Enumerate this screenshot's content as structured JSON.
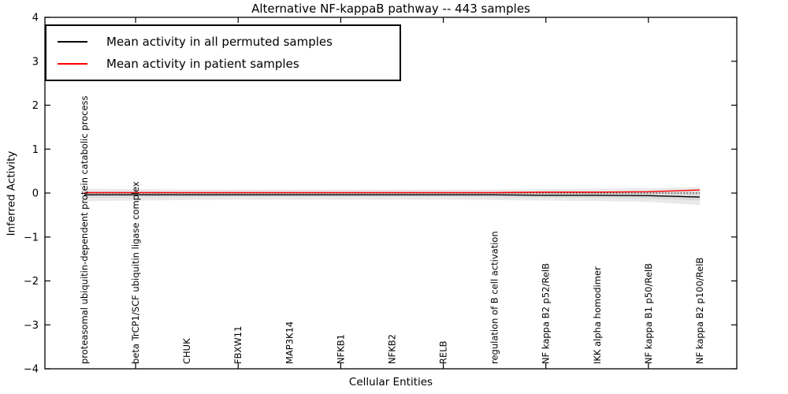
{
  "chart_data": {
    "type": "line",
    "title": "Alternative NF-kappaB pathway -- 443 samples",
    "xlabel": "Cellular Entities",
    "ylabel": "Inferred Activity",
    "ylim": [
      -4,
      4
    ],
    "grid": false,
    "legend_position": "upper left",
    "yticks": [
      {
        "value": 4,
        "label": "4"
      },
      {
        "value": 3,
        "label": "3"
      },
      {
        "value": 2,
        "label": "2"
      },
      {
        "value": 1,
        "label": "1"
      },
      {
        "value": 0,
        "label": "0"
      },
      {
        "value": -1,
        "label": "−1"
      },
      {
        "value": -2,
        "label": "−2"
      },
      {
        "value": -3,
        "label": "−3"
      },
      {
        "value": -4,
        "label": "−4"
      }
    ],
    "xtick_minor_indices": [
      1,
      3,
      5,
      7,
      9,
      11
    ],
    "categories": [
      "proteasomal ubiquitin-dependent protein catabolic process",
      "beta TrCP1/SCF ubiquitin ligase complex",
      "CHUK",
      "FBXW11",
      "MAP3K14",
      "NFKB1",
      "NFKB2",
      "RELB",
      "regulation of B cell activation",
      "NF kappa B2 p52/RelB",
      "IKK alpha homodimer",
      "NF kappa B1 p50/RelB",
      "NF kappa B2 p100/RelB"
    ],
    "series": [
      {
        "name": "Mean activity in all permuted samples",
        "color": "#000000",
        "style": "solid",
        "values": [
          -0.04,
          -0.04,
          -0.04,
          -0.04,
          -0.04,
          -0.04,
          -0.04,
          -0.04,
          -0.04,
          -0.05,
          -0.05,
          -0.06,
          -0.09
        ]
      },
      {
        "name": "Mean activity in patient samples",
        "color": "#ff0000",
        "style": "solid",
        "values": [
          0.01,
          0.01,
          0.01,
          0.01,
          0.01,
          0.01,
          0.01,
          0.01,
          0.01,
          0.02,
          0.02,
          0.03,
          0.07
        ]
      }
    ],
    "zero_line": {
      "color": "#000000",
      "style": "dotted",
      "value": 0
    },
    "bands": [
      {
        "name": "permuted-spread-outer",
        "color": "#e9e9e9",
        "upper": [
          0.1,
          0.09,
          0.08,
          0.08,
          0.08,
          0.08,
          0.08,
          0.08,
          0.08,
          0.09,
          0.1,
          0.11,
          0.14
        ],
        "lower": [
          -0.18,
          -0.17,
          -0.16,
          -0.15,
          -0.15,
          -0.15,
          -0.15,
          -0.15,
          -0.16,
          -0.17,
          -0.18,
          -0.2,
          -0.27
        ]
      },
      {
        "name": "permuted-spread-inner",
        "color": "#dadada",
        "upper": [
          0.04,
          0.04,
          0.03,
          0.03,
          0.03,
          0.03,
          0.03,
          0.03,
          0.03,
          0.04,
          0.04,
          0.05,
          0.08
        ],
        "lower": [
          -0.11,
          -0.1,
          -0.1,
          -0.09,
          -0.09,
          -0.09,
          -0.09,
          -0.09,
          -0.1,
          -0.1,
          -0.11,
          -0.13,
          -0.17
        ]
      }
    ]
  }
}
